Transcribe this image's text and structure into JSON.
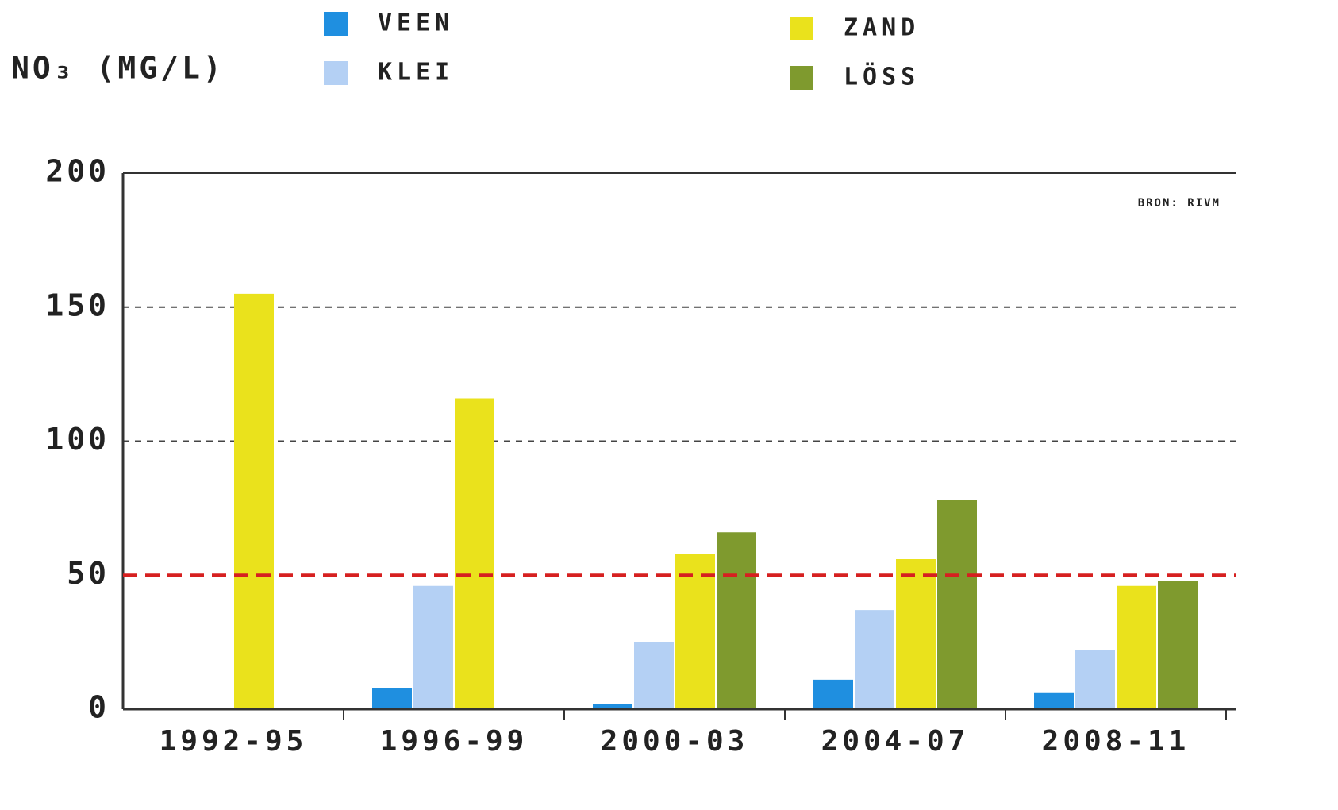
{
  "chart_data": {
    "type": "bar",
    "title": "NO₃ (MG/L)",
    "annotation": "BRON: RIVM",
    "categories": [
      "1992-95",
      "1996-99",
      "2000-03",
      "2004-07",
      "2008-11"
    ],
    "series": [
      {
        "name": "VEEN",
        "color": "#1f8fe0",
        "values": [
          null,
          8,
          2,
          11,
          6
        ]
      },
      {
        "name": "KLEI",
        "color": "#b4d0f4",
        "values": [
          null,
          46,
          25,
          37,
          22
        ]
      },
      {
        "name": "ZAND",
        "color": "#eae21c",
        "values": [
          155,
          116,
          58,
          56,
          46
        ]
      },
      {
        "name": "LÖSS",
        "color": "#7f9a2e",
        "values": [
          null,
          null,
          66,
          78,
          48
        ]
      }
    ],
    "ylim": [
      0,
      200
    ],
    "yticks": [
      0,
      50,
      100,
      150,
      200
    ],
    "grid": true,
    "reference_line": {
      "value": 50,
      "color": "#d62020"
    }
  }
}
